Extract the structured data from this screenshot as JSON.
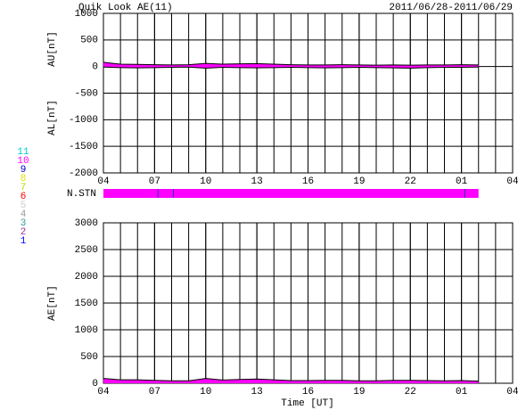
{
  "chart_data": [
    {
      "type": "line",
      "title": "Quik Look AE(11)",
      "subtitle": "2011/06/28-2011/06/29",
      "y_labels": [
        "AU[nT]",
        "AL[nT]"
      ],
      "x": [
        0,
        1,
        2,
        3,
        4,
        5,
        6,
        7,
        8,
        9,
        10,
        11,
        12,
        13,
        14,
        15,
        16,
        17,
        18,
        19,
        20,
        21,
        22
      ],
      "series": [
        {
          "name": "AU",
          "color": "#000000",
          "values": [
            80,
            45,
            40,
            35,
            30,
            35,
            60,
            45,
            50,
            55,
            45,
            35,
            30,
            30,
            35,
            30,
            25,
            30,
            25,
            30,
            30,
            35,
            30
          ]
        },
        {
          "name": "AL",
          "color": "#000000",
          "values": [
            -10,
            -20,
            -25,
            -20,
            -15,
            -10,
            -30,
            -15,
            -20,
            -25,
            -20,
            -15,
            -20,
            -25,
            -20,
            -15,
            -20,
            -25,
            -30,
            -20,
            -15,
            -15,
            -10
          ]
        }
      ],
      "fill_color": "#ff00ff",
      "xlim": [
        0,
        24
      ],
      "xticks": [
        {
          "value": 0,
          "label": "04"
        },
        {
          "value": 3,
          "label": "07"
        },
        {
          "value": 6,
          "label": "10"
        },
        {
          "value": 9,
          "label": "13"
        },
        {
          "value": 12,
          "label": "16"
        },
        {
          "value": 15,
          "label": "19"
        },
        {
          "value": 18,
          "label": "22"
        },
        {
          "value": 21,
          "label": "01"
        },
        {
          "value": 24,
          "label": "04"
        }
      ],
      "ylim": [
        -2000,
        1000
      ],
      "yticks": [
        -2000,
        -1500,
        -1000,
        -500,
        0,
        500,
        1000
      ],
      "grid": true,
      "grid_interval": 1
    },
    {
      "type": "strip",
      "label": "N.STN",
      "xlim": [
        0,
        24
      ],
      "segments": [
        {
          "start": 0,
          "end": 3.2,
          "color": "#ff00ff"
        },
        {
          "start": 3.2,
          "end": 4.1,
          "color": "#ff00ff"
        },
        {
          "start": 4.1,
          "end": 21.2,
          "color": "#ff00ff"
        },
        {
          "start": 21.2,
          "end": 22,
          "color": "#ff00ff"
        }
      ],
      "divider_color": "#3333aa"
    },
    {
      "type": "area",
      "y_label": "AE[nT]",
      "x_label": "Time [UT]",
      "x": [
        0,
        1,
        2,
        3,
        4,
        5,
        6,
        7,
        8,
        9,
        10,
        11,
        12,
        13,
        14,
        15,
        16,
        17,
        18,
        19,
        20,
        21,
        22
      ],
      "series": [
        {
          "name": "AE",
          "color": "#000000",
          "fill": "#ff00ff",
          "values": [
            90,
            65,
            65,
            55,
            45,
            45,
            90,
            60,
            70,
            80,
            65,
            50,
            50,
            55,
            55,
            45,
            45,
            55,
            55,
            50,
            45,
            50,
            40
          ]
        }
      ],
      "xlim": [
        0,
        24
      ],
      "xticks": [
        {
          "value": 0,
          "label": "04"
        },
        {
          "value": 3,
          "label": "07"
        },
        {
          "value": 6,
          "label": "10"
        },
        {
          "value": 9,
          "label": "13"
        },
        {
          "value": 12,
          "label": "16"
        },
        {
          "value": 15,
          "label": "19"
        },
        {
          "value": 18,
          "label": "22"
        },
        {
          "value": 21,
          "label": "01"
        },
        {
          "value": 24,
          "label": "04"
        }
      ],
      "ylim": [
        0,
        3000
      ],
      "yticks": [
        0,
        500,
        1000,
        1500,
        2000,
        2500,
        3000
      ],
      "grid": true,
      "grid_interval": 1
    }
  ],
  "station_key": [
    {
      "label": "11",
      "color": "#00cccc"
    },
    {
      "label": "10",
      "color": "#ff00ff"
    },
    {
      "label": "9",
      "color": "#0000cc"
    },
    {
      "label": "8",
      "color": "#e0e000"
    },
    {
      "label": "7",
      "color": "#b8d800"
    },
    {
      "label": "6",
      "color": "#ff0000"
    },
    {
      "label": "5",
      "color": "#cccccc"
    },
    {
      "label": "4",
      "color": "#999999"
    },
    {
      "label": "3",
      "color": "#339999"
    },
    {
      "label": "2",
      "color": "#993399"
    },
    {
      "label": "1",
      "color": "#0000ff"
    }
  ]
}
